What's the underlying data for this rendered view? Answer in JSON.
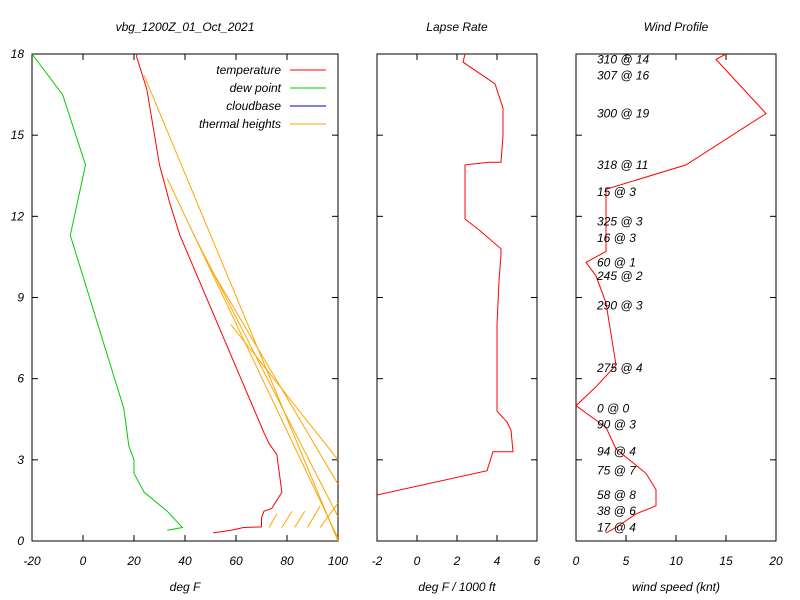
{
  "chart_data": [
    {
      "type": "line",
      "title": "vbg_1200Z_01_Oct_2021",
      "xlabel": "deg F",
      "ylabel": "",
      "xlim": [
        -20,
        100
      ],
      "ylim": [
        0,
        18
      ],
      "xticks": [
        "-20",
        "0",
        "20",
        "40",
        "60",
        "80",
        "100"
      ],
      "yticks": [
        "0",
        "3",
        "6",
        "9",
        "12",
        "15",
        "18"
      ],
      "legend_position": "top-right",
      "series": [
        {
          "name": "temperature",
          "color": "#ff0000",
          "points": [
            [
              51,
              0.3
            ],
            [
              58,
              0.4
            ],
            [
              63,
              0.5
            ],
            [
              70,
              0.52
            ],
            [
              70,
              0.85
            ],
            [
              71,
              1.1
            ],
            [
              74,
              1.2
            ],
            [
              76,
              1.5
            ],
            [
              78,
              1.8
            ],
            [
              76,
              3.2
            ],
            [
              73,
              3.6
            ],
            [
              71,
              4.0
            ],
            [
              38,
              11.3
            ],
            [
              34,
              12.5
            ],
            [
              30,
              13.9
            ],
            [
              25,
              16.7
            ],
            [
              21,
              17.9
            ],
            [
              21,
              18.0
            ]
          ]
        },
        {
          "name": "dew point",
          "color": "#00cc00",
          "points": [
            [
              33,
              0.4
            ],
            [
              39,
              0.5
            ],
            [
              33,
              1.1
            ],
            [
              24,
              1.8
            ],
            [
              20,
              2.5
            ],
            [
              20,
              3.0
            ],
            [
              18,
              3.5
            ],
            [
              16,
              4.9
            ],
            [
              -5,
              11.3
            ],
            [
              1,
              13.9
            ],
            [
              -8,
              16.5
            ],
            [
              -20,
              18.0
            ]
          ]
        },
        {
          "name": "cloudbase",
          "color": "#0000cc",
          "points": []
        },
        {
          "name": "thermal heights",
          "color": "#ffa500",
          "segments": [
            [
              [
                73,
                0.5
              ],
              [
                76,
                1.0
              ]
            ],
            [
              [
                78,
                0.5
              ],
              [
                82,
                1.1
              ]
            ],
            [
              [
                83,
                0.5
              ],
              [
                87,
                1.1
              ]
            ],
            [
              [
                88,
                0.5
              ],
              [
                93,
                1.3
              ]
            ],
            [
              [
                93,
                0.5
              ],
              [
                100,
                1.4
              ]
            ],
            [
              [
                58,
                8.0
              ],
              [
                100,
                3.0
              ]
            ],
            [
              [
                48,
                10.4
              ],
              [
                100,
                2.1
              ]
            ],
            [
              [
                43,
                11.4
              ],
              [
                100,
                0.9
              ]
            ],
            [
              [
                33,
                13.4
              ],
              [
                100,
                0.1
              ]
            ],
            [
              [
                24,
                17.2
              ],
              [
                100,
                0.0
              ]
            ]
          ]
        }
      ]
    },
    {
      "type": "line",
      "title": "Lapse Rate",
      "xlabel": "deg F / 1000 ft",
      "ylabel": "",
      "xlim": [
        -2,
        6
      ],
      "ylim": [
        0,
        18
      ],
      "xticks": [
        "-2",
        "0",
        "2",
        "4",
        "6"
      ],
      "series": [
        {
          "name": "",
          "color": "#ff0000",
          "points": [
            [
              -2,
              1.7
            ],
            [
              3.5,
              2.6
            ],
            [
              3.8,
              3.3
            ],
            [
              4.8,
              3.3
            ],
            [
              4.7,
              4.1
            ],
            [
              4.5,
              4.4
            ],
            [
              4.0,
              4.8
            ],
            [
              4.0,
              6.0
            ],
            [
              4.0,
              8.0
            ],
            [
              4.1,
              9.6
            ],
            [
              4.2,
              10.6
            ],
            [
              4.2,
              10.8
            ],
            [
              3.1,
              11.5
            ],
            [
              2.4,
              11.9
            ],
            [
              2.4,
              13.9
            ],
            [
              3.6,
              14.0
            ],
            [
              4.2,
              14.0
            ],
            [
              4.3,
              15.0
            ],
            [
              4.3,
              16.0
            ],
            [
              3.9,
              16.9
            ],
            [
              2.3,
              17.7
            ],
            [
              2.4,
              18.0
            ]
          ]
        }
      ]
    },
    {
      "type": "line",
      "title": "Wind Profile",
      "xlabel": "wind speed (knt)",
      "ylabel": "",
      "xlim": [
        0,
        20
      ],
      "ylim": [
        0,
        18
      ],
      "xticks": [
        "0",
        "5",
        "10",
        "15",
        "20"
      ],
      "series": [
        {
          "name": "",
          "color": "#ff0000",
          "points": [
            [
              3,
              0.3
            ],
            [
              4,
              0.5
            ],
            [
              6,
              1.0
            ],
            [
              8,
              1.3
            ],
            [
              8,
              1.9
            ],
            [
              7,
              2.5
            ],
            [
              4,
              3.4
            ],
            [
              3,
              4.2
            ],
            [
              0,
              5.0
            ],
            [
              2,
              5.7
            ],
            [
              4,
              6.5
            ],
            [
              3,
              8.8
            ],
            [
              2,
              9.8
            ],
            [
              1,
              10.3
            ],
            [
              3,
              10.7
            ],
            [
              3,
              11.4
            ],
            [
              3,
              12.2
            ],
            [
              3,
              13.0
            ],
            [
              11,
              13.9
            ],
            [
              19,
              15.8
            ],
            [
              16,
              17.0
            ],
            [
              14,
              17.8
            ],
            [
              15,
              18.0
            ]
          ]
        }
      ],
      "annotations": [
        {
          "text": "310 @ 14",
          "y": 17.8
        },
        {
          "text": "307 @ 16",
          "y": 17.2
        },
        {
          "text": "300 @ 19",
          "y": 15.8
        },
        {
          "text": "318 @ 11",
          "y": 13.9
        },
        {
          "text": "15 @ 3",
          "y": 12.9
        },
        {
          "text": "325 @ 3",
          "y": 11.8
        },
        {
          "text": "16 @ 3",
          "y": 11.2
        },
        {
          "text": "60 @ 1",
          "y": 10.3
        },
        {
          "text": "245 @ 2",
          "y": 9.8
        },
        {
          "text": "290 @ 3",
          "y": 8.7
        },
        {
          "text": "275 @ 4",
          "y": 6.4
        },
        {
          "text": "0 @ 0",
          "y": 4.9
        },
        {
          "text": "90 @ 3",
          "y": 4.3
        },
        {
          "text": "94 @ 4",
          "y": 3.3
        },
        {
          "text": "75 @ 7",
          "y": 2.6
        },
        {
          "text": "58 @ 8",
          "y": 1.7
        },
        {
          "text": "38 @ 6",
          "y": 1.1
        },
        {
          "text": "17 @ 4",
          "y": 0.5
        }
      ]
    }
  ]
}
